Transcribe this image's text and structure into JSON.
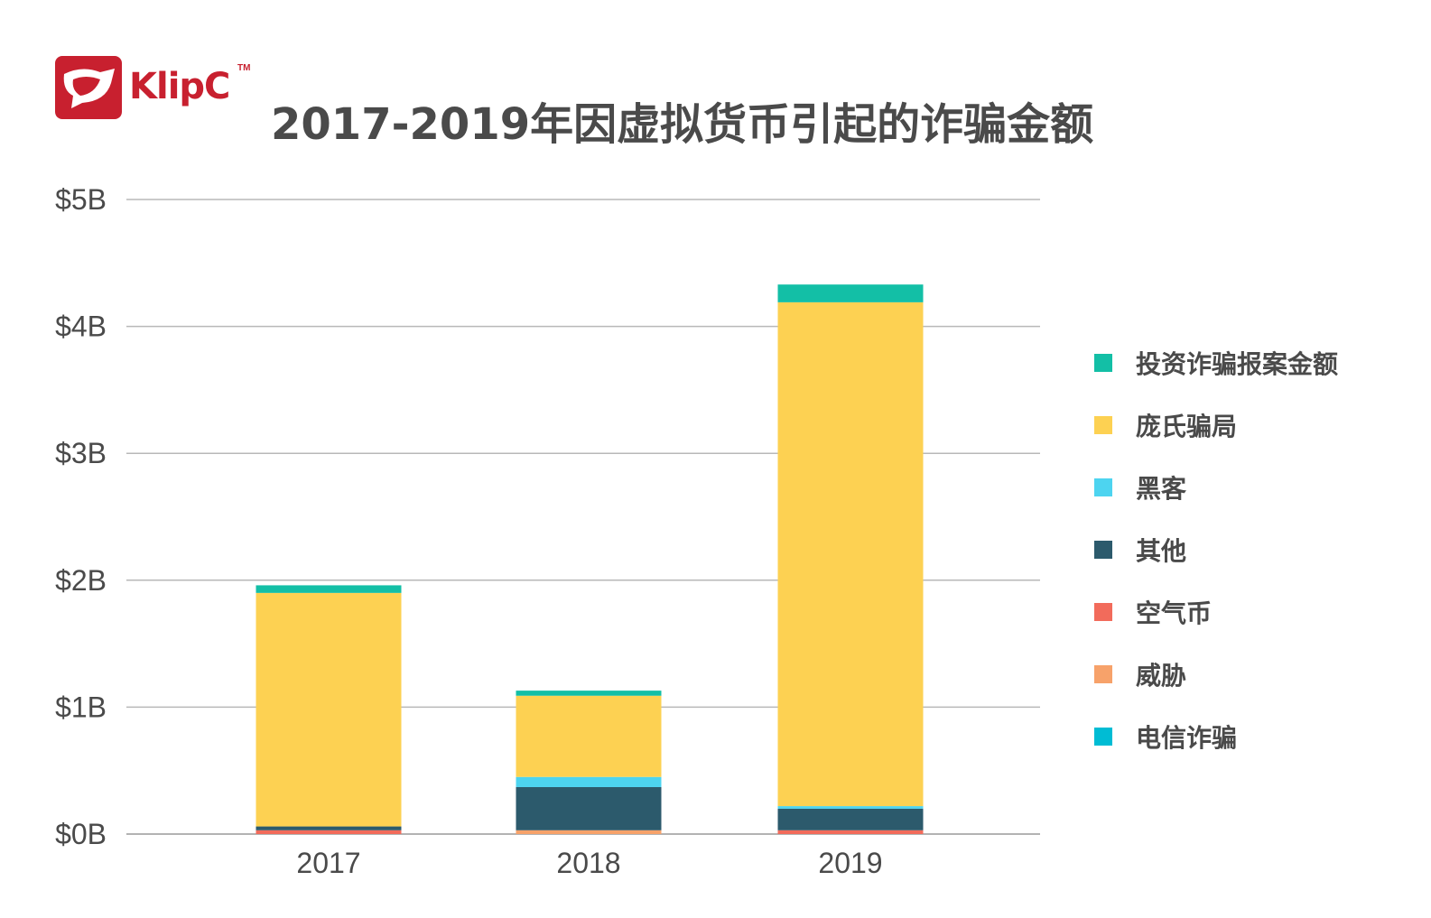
{
  "brand": {
    "name": "KlipC",
    "tm": "TM",
    "color": "#c8202f"
  },
  "chart_data": {
    "type": "bar",
    "stacked": true,
    "title": "2017-2019年因虚拟货币引起的诈骗金额",
    "xlabel": "",
    "ylabel": "",
    "categories": [
      "2017",
      "2018",
      "2019"
    ],
    "ylim": [
      0,
      5
    ],
    "yticks": [
      "$0B",
      "$1B",
      "$2B",
      "$3B",
      "$4B",
      "$5B"
    ],
    "grid": true,
    "legend_position": "right",
    "series": [
      {
        "name": "电信诈骗",
        "color": "#00bcd4",
        "values": [
          0.0,
          0.0,
          0.0
        ]
      },
      {
        "name": "威胁",
        "color": "#f7a26a",
        "values": [
          0.0,
          0.03,
          0.0
        ]
      },
      {
        "name": "空气币",
        "color": "#f26b5b",
        "values": [
          0.03,
          0.0,
          0.03
        ]
      },
      {
        "name": "其他",
        "color": "#2c5a6c",
        "values": [
          0.03,
          0.34,
          0.17
        ]
      },
      {
        "name": "黑客",
        "color": "#4dd4f0",
        "values": [
          0.0,
          0.08,
          0.02
        ]
      },
      {
        "name": "庞氏骗局",
        "color": "#fdd152",
        "values": [
          1.84,
          0.64,
          3.97
        ]
      },
      {
        "name": "投资诈骗报案金额",
        "color": "#13bfa6",
        "values": [
          0.06,
          0.04,
          0.14
        ]
      }
    ]
  }
}
